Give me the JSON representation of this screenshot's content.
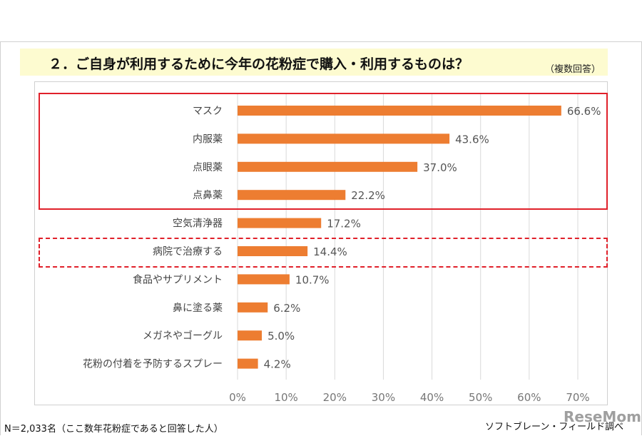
{
  "title": "２．ご自身が利用するために今年の花粉症で購入・利用するものは？",
  "subtitle": "（複数回答）",
  "footnote": "N＝2,033名（ここ数年花粉症であると回答した人）",
  "source": "ソフトブレーン・フィールド調べ",
  "watermark": "ReseMom",
  "colors": {
    "bar": "#ed7d31",
    "highlight": "#e0202a",
    "title_band": "#fdfbd0"
  },
  "chart_data": {
    "type": "bar",
    "orientation": "horizontal",
    "categories": [
      "マスク",
      "内服薬",
      "点眼薬",
      "点鼻薬",
      "空気清浄器",
      "病院で治療する",
      "食品やサプリメント",
      "鼻に塗る薬",
      "メガネやゴーグル",
      "花粉の付着を予防するスプレー"
    ],
    "values": [
      66.6,
      43.6,
      37.0,
      22.2,
      17.2,
      14.4,
      10.7,
      6.2,
      5.0,
      4.2
    ],
    "data_labels": [
      "66.6%",
      "43.6%",
      "37.0%",
      "22.2%",
      "17.2%",
      "14.4%",
      "10.7%",
      "6.2%",
      "5.0%",
      "4.2%"
    ],
    "xlim": [
      0,
      70
    ],
    "xticks": [
      "0%",
      "10%",
      "20%",
      "30%",
      "40%",
      "50%",
      "60%",
      "70%"
    ],
    "grid": true,
    "highlighted_solid": [
      "マスク",
      "内服薬",
      "点眼薬",
      "点鼻薬"
    ],
    "highlighted_dashed": [
      "病院で治療する"
    ]
  }
}
